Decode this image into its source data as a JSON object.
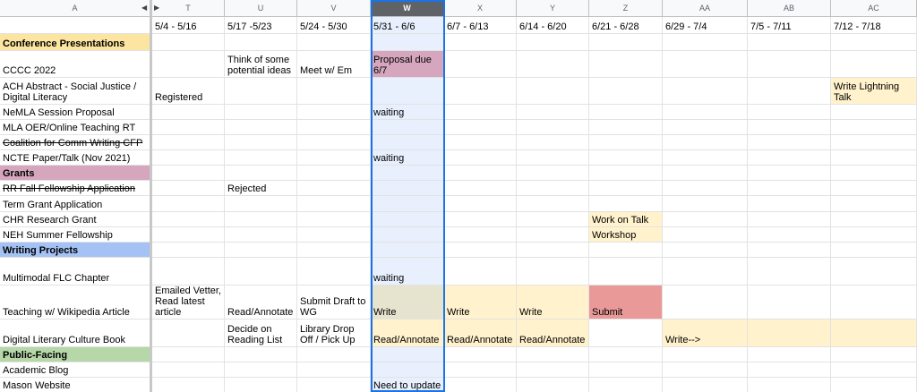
{
  "column_headers": {
    "A": "A",
    "T": "T",
    "U": "U",
    "V": "V",
    "W": "W",
    "X": "X",
    "Y": "Y",
    "Z": "Z",
    "AA": "AA",
    "AB": "AB",
    "AC": "AC"
  },
  "icons": {
    "collapse_left": "triangle-left-icon",
    "collapse_right": "triangle-right-icon"
  },
  "colors": {
    "selected_column_bg": "#e8f0fe",
    "selection_border": "#1a73e8",
    "section_conference": "#fce5a1",
    "section_grants": "#d5a6bd",
    "section_writing": "#a4c2f4",
    "section_public": "#b6d7a8",
    "yellow_cell": "#fff2cc",
    "pink_cell": "#d5a6bd",
    "red_cell": "#ea9999",
    "olive_cell": "#e6e3ce"
  },
  "week_row": [
    "",
    "5/4 - 5/16",
    "5/17 -5/23",
    "5/24 - 5/30",
    "5/31 - 6/6",
    "6/7 - 6/13",
    "6/14 - 6/20",
    "6/21 - 6/28",
    "6/29 - 7/4",
    "7/5 - 7/11",
    "7/12 - 7/18"
  ],
  "rows": [
    {
      "a": "Conference Presentations",
      "t": "",
      "u": "",
      "v": "",
      "w": "",
      "x": "",
      "y": "",
      "z": "",
      "aa": "",
      "ab": "",
      "ac": ""
    },
    {
      "a": "CCCC 2022",
      "t": "",
      "u": "Think of some potential ideas",
      "v": "Meet w/ Em",
      "w": "Proposal due 6/7",
      "x": "",
      "y": "",
      "z": "",
      "aa": "",
      "ab": "",
      "ac": ""
    },
    {
      "a": "ACH Abstract - Social Justice / Digital Literacy",
      "t": "Registered",
      "u": "",
      "v": "",
      "w": "",
      "x": "",
      "y": "",
      "z": "",
      "aa": "",
      "ab": "",
      "ac": "Write Lightning Talk"
    },
    {
      "a": "NeMLA Session Proposal",
      "t": "",
      "u": "",
      "v": "",
      "w": "waiting",
      "x": "",
      "y": "",
      "z": "",
      "aa": "",
      "ab": "",
      "ac": ""
    },
    {
      "a": "MLA OER/Online Teaching RT",
      "t": "",
      "u": "",
      "v": "",
      "w": "",
      "x": "",
      "y": "",
      "z": "",
      "aa": "",
      "ab": "",
      "ac": ""
    },
    {
      "a": "Coalition for Comm Writing CFP",
      "t": "",
      "u": "",
      "v": "",
      "w": "",
      "x": "",
      "y": "",
      "z": "",
      "aa": "",
      "ab": "",
      "ac": ""
    },
    {
      "a": "NCTE Paper/Talk (Nov 2021)",
      "t": "",
      "u": "",
      "v": "",
      "w": "waiting",
      "x": "",
      "y": "",
      "z": "",
      "aa": "",
      "ab": "",
      "ac": ""
    },
    {
      "a": "Grants",
      "t": "",
      "u": "",
      "v": "",
      "w": "",
      "x": "",
      "y": "",
      "z": "",
      "aa": "",
      "ab": "",
      "ac": ""
    },
    {
      "a": "RR Fall Fellowship Application",
      "t": "",
      "u": "Rejected",
      "v": "",
      "w": "",
      "x": "",
      "y": "",
      "z": "",
      "aa": "",
      "ab": "",
      "ac": ""
    },
    {
      "a": "Term Grant Application",
      "t": "",
      "u": "",
      "v": "",
      "w": "",
      "x": "",
      "y": "",
      "z": "",
      "aa": "",
      "ab": "",
      "ac": ""
    },
    {
      "a": "CHR Research Grant",
      "t": "",
      "u": "",
      "v": "",
      "w": "",
      "x": "",
      "y": "",
      "z": "Work on Talk",
      "aa": "",
      "ab": "",
      "ac": ""
    },
    {
      "a": "NEH Summer Fellowship",
      "t": "",
      "u": "",
      "v": "",
      "w": "",
      "x": "",
      "y": "",
      "z": "Workshop",
      "aa": "",
      "ab": "",
      "ac": ""
    },
    {
      "a": "Writing Projects",
      "t": "",
      "u": "",
      "v": "",
      "w": "",
      "x": "",
      "y": "",
      "z": "",
      "aa": "",
      "ab": "",
      "ac": ""
    },
    {
      "a": "Multimodal FLC Chapter",
      "t": "",
      "u": "",
      "v": "",
      "w": "waiting",
      "x": "",
      "y": "",
      "z": "",
      "aa": "",
      "ab": "",
      "ac": ""
    },
    {
      "a": "Teaching w/ Wikipedia Article",
      "t": "Emailed Vetter, Read latest article",
      "u": "Read/Annotate",
      "v": "Submit Draft to WG",
      "w": "Write",
      "x": "Write",
      "y": "Write",
      "z": "Submit",
      "aa": "",
      "ab": "",
      "ac": ""
    },
    {
      "a": "Digital Literary Culture Book",
      "t": "",
      "u": "Decide on Reading List",
      "v": "Library Drop Off / Pick Up",
      "w": "Read/Annotate",
      "x": "Read/Annotate",
      "y": "Read/Annotate",
      "z": "",
      "aa": "Write-->",
      "ab": "",
      "ac": ""
    },
    {
      "a": "Public-Facing",
      "t": "",
      "u": "",
      "v": "",
      "w": "",
      "x": "",
      "y": "",
      "z": "",
      "aa": "",
      "ab": "",
      "ac": ""
    },
    {
      "a": "Academic Blog",
      "t": "",
      "u": "",
      "v": "",
      "w": "",
      "x": "",
      "y": "",
      "z": "",
      "aa": "",
      "ab": "",
      "ac": ""
    },
    {
      "a": "Mason Website",
      "t": "",
      "u": "",
      "v": "",
      "w": "Need to update",
      "x": "",
      "y": "",
      "z": "",
      "aa": "",
      "ab": "",
      "ac": ""
    }
  ]
}
